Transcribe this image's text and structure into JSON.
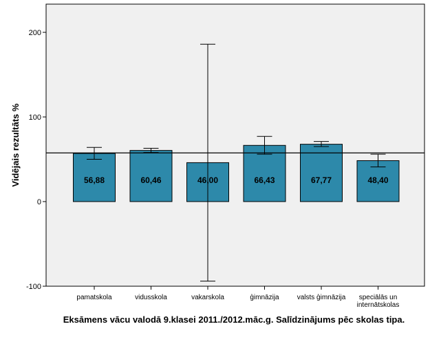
{
  "chart_data": {
    "type": "bar",
    "title": "Eksāmens vācu valodā 9.klasei 2011./2012.māc.g. Salīdzinājums pēc skolas tipa.",
    "xlabel": "",
    "ylabel": "Vidējais rezultāts %",
    "categories": [
      [
        "pamatskola"
      ],
      [
        "vidusskola"
      ],
      [
        "vakarskola"
      ],
      [
        "ģimnāzija"
      ],
      [
        "valsts ģimnāzija"
      ],
      [
        "speciālās un",
        "internātskolas"
      ]
    ],
    "values": [
      56.88,
      60.46,
      46.0,
      66.43,
      67.77,
      48.4
    ],
    "value_labels": [
      "56,88",
      "60,46",
      "46,00",
      "66,43",
      "67,77",
      "48,40"
    ],
    "error_bars": [
      {
        "low": 50,
        "high": 64
      },
      {
        "low": 58,
        "high": 63
      },
      {
        "low": -94,
        "high": 186
      },
      {
        "low": 56,
        "high": 77
      },
      {
        "low": 65,
        "high": 71
      },
      {
        "low": 41,
        "high": 56
      }
    ],
    "reference_line": 57.5,
    "ylim": [
      -100,
      225
    ],
    "yticks": [
      -100,
      0,
      100,
      200
    ],
    "ytick_labels": [
      "-100",
      "0",
      "100",
      "200"
    ],
    "grid": false,
    "legend": "none",
    "colors": {
      "bar_fill": "#2d89aa",
      "bar_stroke": "#000000",
      "plot_background": "#f0f0f0",
      "plot_border": "#000000"
    }
  }
}
